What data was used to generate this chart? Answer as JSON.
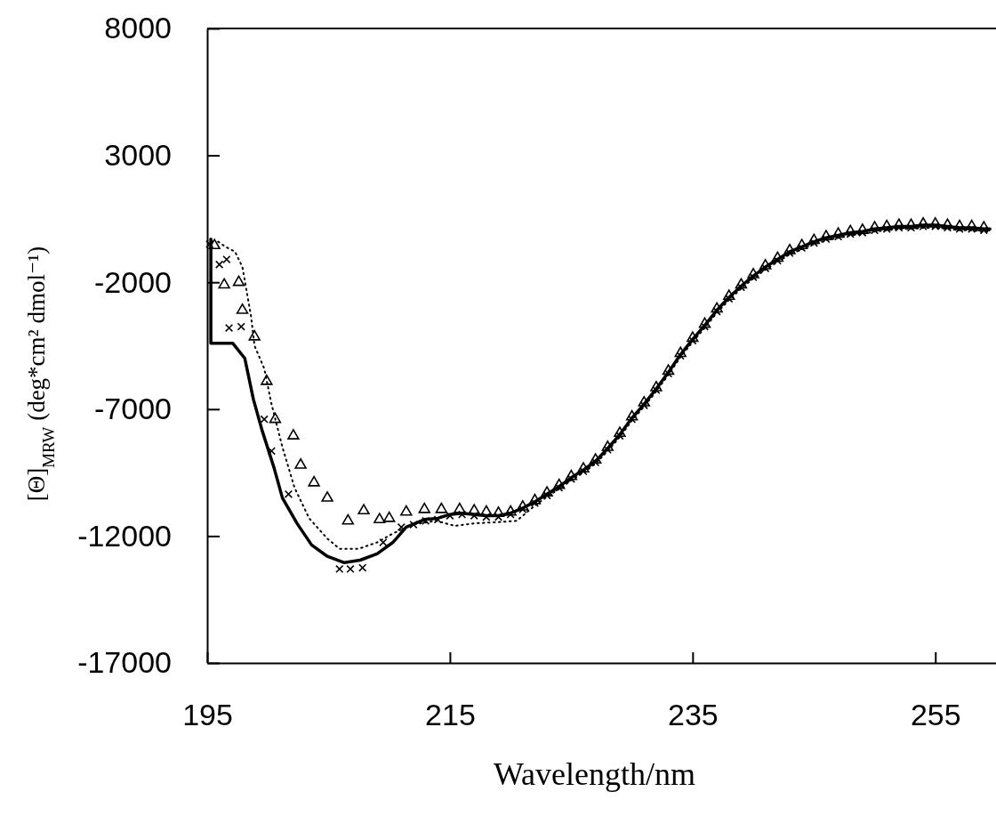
{
  "chart_data": {
    "type": "line",
    "xlabel": "Wavelength/nm",
    "ylabel": "[Θ]$_{MRW}$ (deg*cm² dmol⁻¹)",
    "xlim": [
      195,
      260
    ],
    "xticks": [
      195,
      215,
      235,
      255
    ],
    "ylim": [
      -17000,
      8000
    ],
    "yticks": [
      8000,
      3000,
      -2000,
      -7000,
      -12000,
      -17000
    ],
    "series": [
      {
        "color": "#000000",
        "line_style": "solid",
        "x": [
          195.3,
          195.3,
          197.1,
          198.1,
          198.8,
          199.5,
          200.5,
          201.2,
          202.4,
          203.6,
          204.9,
          206.3,
          207.6,
          209.0,
          210.3,
          211.4,
          212.9,
          214,
          215,
          216,
          217,
          218,
          219,
          220,
          221,
          222,
          223,
          224,
          225,
          226,
          227,
          228,
          229,
          230,
          231,
          232,
          233,
          234,
          235,
          236,
          237,
          238,
          239,
          240,
          241,
          242,
          243,
          244,
          245,
          246,
          247,
          248,
          249,
          250,
          251,
          252,
          253,
          254,
          255,
          256,
          257,
          258,
          259,
          259.5
        ],
        "values": [
          -300,
          -4400,
          -4400,
          -5000,
          -6600,
          -7800,
          -9300,
          -10500,
          -11500,
          -12350,
          -12800,
          -13050,
          -12950,
          -12700,
          -12250,
          -11650,
          -11350,
          -11300,
          -11150,
          -11100,
          -11150,
          -11200,
          -11200,
          -11100,
          -10900,
          -10650,
          -10350,
          -10050,
          -9700,
          -9400,
          -9050,
          -8550,
          -8000,
          -7350,
          -6800,
          -6200,
          -5550,
          -4850,
          -4250,
          -3700,
          -3100,
          -2600,
          -2150,
          -1750,
          -1400,
          -1100,
          -800,
          -600,
          -400,
          -250,
          -150,
          -50,
          0,
          100,
          150,
          200,
          200,
          250,
          250,
          200,
          150,
          150,
          100,
          100
        ]
      },
      {
        "color": "#000000",
        "line_style": "dotted",
        "x": [
          195.9,
          196.5,
          197.3,
          197.9,
          198.6,
          198.9,
          199.7,
          200.3,
          201.2,
          202.2,
          203.4,
          204.9,
          205.9,
          207.5,
          209.0,
          210.3,
          211.9,
          213.9,
          215.4,
          217,
          219,
          220.5,
          222,
          223,
          224,
          225,
          226,
          227,
          228,
          229,
          230,
          231,
          232,
          233,
          234,
          235,
          236,
          237,
          238,
          239,
          240,
          241,
          242,
          243,
          244,
          245,
          246,
          247,
          248,
          249,
          250,
          251,
          252,
          253,
          254,
          255,
          256,
          257,
          258,
          259,
          259.5
        ],
        "values": [
          -400,
          -600,
          -800,
          -1400,
          -3300,
          -4500,
          -5400,
          -6800,
          -8500,
          -10100,
          -11300,
          -12100,
          -12500,
          -12500,
          -12250,
          -11900,
          -11550,
          -11400,
          -11600,
          -11500,
          -11450,
          -11400,
          -10800,
          -10450,
          -10150,
          -9800,
          -9500,
          -9150,
          -8650,
          -8100,
          -7450,
          -6900,
          -6300,
          -5650,
          -4950,
          -4350,
          -3800,
          -3200,
          -2700,
          -2250,
          -1850,
          -1500,
          -1200,
          -900,
          -700,
          -500,
          -350,
          -250,
          -150,
          -100,
          0,
          50,
          100,
          100,
          150,
          150,
          100,
          50,
          50,
          0,
          0
        ]
      },
      {
        "type": "scatter",
        "color": "#000000",
        "marker": "triangle",
        "x": [
          195.6,
          196.4,
          197.6,
          197.9,
          198.9,
          199.9,
          200.6,
          202.1,
          202.7,
          203.8,
          204.9,
          206.6,
          207.9,
          209.2,
          210.0,
          211.4,
          212.9,
          214.3,
          215.8,
          217,
          218,
          219,
          220,
          221,
          222,
          223,
          224,
          225,
          226,
          227,
          228,
          229,
          230,
          231,
          232,
          233,
          234,
          235,
          236,
          237,
          238,
          239,
          240,
          241,
          242,
          243,
          244,
          245,
          246,
          247,
          248,
          249,
          250,
          251,
          252,
          253,
          254,
          255,
          256,
          257,
          258,
          259
        ],
        "values": [
          -550,
          -2100,
          -2000,
          -3100,
          -4150,
          -5900,
          -7400,
          -8050,
          -9200,
          -9900,
          -10500,
          -11400,
          -11000,
          -11350,
          -11300,
          -11050,
          -10950,
          -10950,
          -10950,
          -11000,
          -11050,
          -11100,
          -11050,
          -10850,
          -10600,
          -10300,
          -10000,
          -9650,
          -9350,
          -9000,
          -8500,
          -7950,
          -7300,
          -6750,
          -6150,
          -5500,
          -4800,
          -4200,
          -3650,
          -3050,
          -2550,
          -2100,
          -1700,
          -1350,
          -1050,
          -750,
          -550,
          -350,
          -200,
          -100,
          0,
          50,
          150,
          200,
          250,
          250,
          300,
          300,
          250,
          200,
          200,
          150
        ]
      },
      {
        "type": "scatter",
        "color": "#000000",
        "marker": "cross",
        "x": [
          195.2,
          196.0,
          196.6,
          196.8,
          197.8,
          199.7,
          200.3,
          201.7,
          205.9,
          206.8,
          207.8,
          209.5,
          211.0,
          212.0,
          213.0,
          214,
          215,
          216,
          217,
          218,
          219,
          220,
          221,
          222,
          223,
          224,
          225,
          226,
          227,
          228,
          229,
          230,
          231,
          232,
          233,
          234,
          235,
          236,
          237,
          238,
          239,
          240,
          241,
          242,
          243,
          244,
          245,
          246,
          247,
          248,
          249,
          250,
          251,
          252,
          253,
          254,
          255,
          256,
          257,
          258,
          259
        ],
        "values": [
          -500,
          -1300,
          -1100,
          -3800,
          -3750,
          -7400,
          -8650,
          -10350,
          -13300,
          -13300,
          -13250,
          -12250,
          -11650,
          -11550,
          -11400,
          -11350,
          -11200,
          -11150,
          -11200,
          -11250,
          -11250,
          -11150,
          -10950,
          -10700,
          -10400,
          -10100,
          -9750,
          -9450,
          -9100,
          -8600,
          -8050,
          -7400,
          -6850,
          -6250,
          -5600,
          -4900,
          -4300,
          -3750,
          -3150,
          -2650,
          -2200,
          -1800,
          -1450,
          -1150,
          -850,
          -650,
          -450,
          -300,
          -200,
          -100,
          -50,
          50,
          100,
          150,
          150,
          200,
          200,
          150,
          100,
          100,
          50
        ]
      }
    ]
  }
}
